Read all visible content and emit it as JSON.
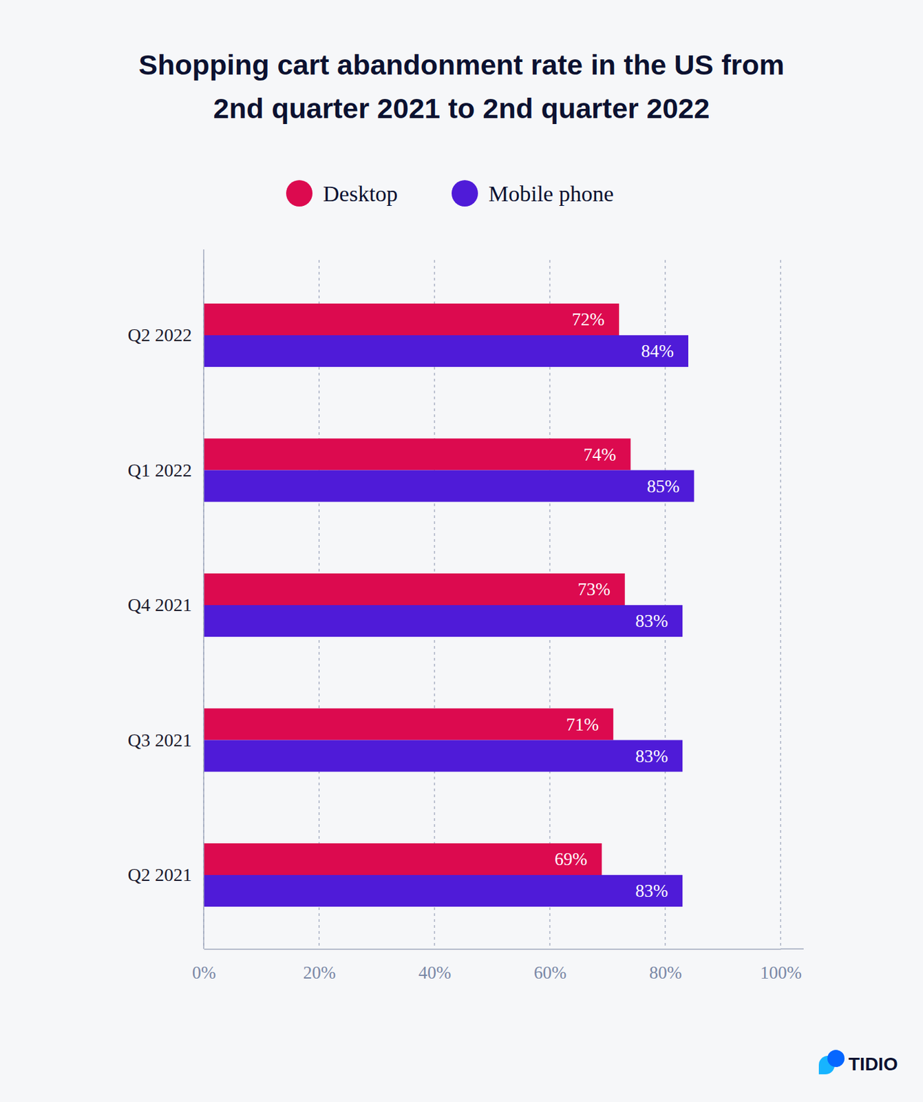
{
  "chart_data": {
    "type": "bar",
    "orientation": "horizontal",
    "title": "Shopping cart abandonment rate in the US from 2nd quarter 2021 to 2nd quarter 2022",
    "categories": [
      "Q2 2022",
      "Q1 2022",
      "Q4 2021",
      "Q3 2021",
      "Q2 2021"
    ],
    "series": [
      {
        "name": "Desktop",
        "color": "#dc0a4f",
        "values": [
          72,
          74,
          73,
          71,
          69
        ],
        "value_labels": [
          "72%",
          "74%",
          "73%",
          "71%",
          "69%"
        ]
      },
      {
        "name": "Mobile phone",
        "color": "#4f1bd8",
        "values": [
          84,
          85,
          83,
          83,
          83
        ],
        "value_labels": [
          "84%",
          "85%",
          "83%",
          "83%",
          "83%"
        ]
      }
    ],
    "xlim": [
      0,
      100
    ],
    "xticks": [
      {
        "value": 0,
        "label": "0%"
      },
      {
        "value": 20,
        "label": "20%"
      },
      {
        "value": 40,
        "label": "40%"
      },
      {
        "value": 60,
        "label": "60%"
      },
      {
        "value": 80,
        "label": "80%"
      },
      {
        "value": 100,
        "label": "100%"
      }
    ],
    "grid": true,
    "legend": "top",
    "data_labels": true,
    "annotations": [
      "TIDIO"
    ]
  }
}
